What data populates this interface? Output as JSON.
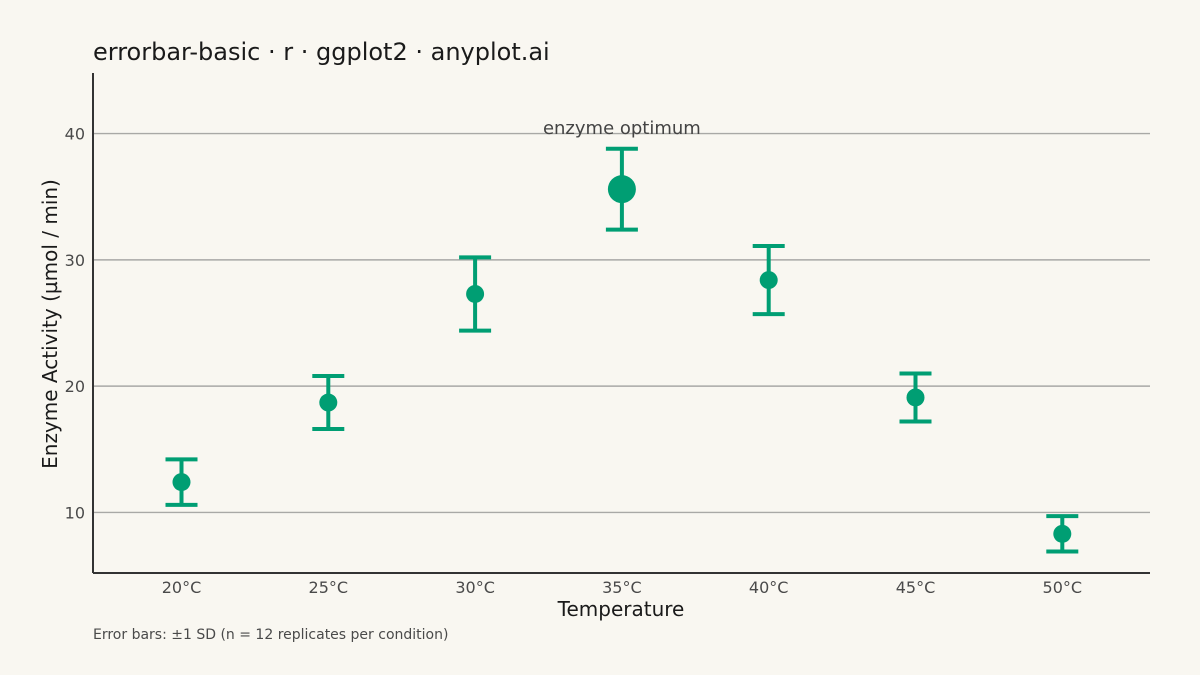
{
  "chart_data": {
    "type": "scatter",
    "title": "errorbar-basic · r · ggplot2 · anyplot.ai",
    "xlabel": "Temperature",
    "ylabel": "Enzyme Activity (µmol / min)",
    "caption": "Error bars: ±1 SD  (n = 12 replicates per condition)",
    "annotation": "enzyme optimum",
    "categories": [
      "20°C",
      "25°C",
      "30°C",
      "35°C",
      "40°C",
      "45°C",
      "50°C"
    ],
    "values": [
      12.4,
      18.7,
      27.3,
      35.6,
      28.4,
      19.1,
      8.3
    ],
    "error_sd": [
      1.8,
      2.1,
      2.9,
      3.2,
      2.7,
      1.9,
      1.4
    ],
    "highlight_index": 3,
    "ylim": [
      5.2,
      44.8
    ],
    "yticks": [
      10,
      20,
      30,
      40
    ],
    "grid": "horizontal major",
    "colors": {
      "point": "#009E73",
      "background": "#F9F7F1",
      "grid": "#a9a9a6",
      "axis": "#333333"
    }
  }
}
